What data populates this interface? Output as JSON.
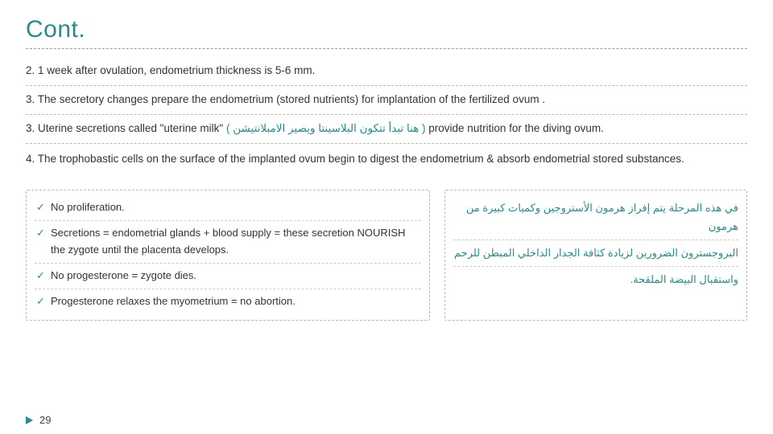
{
  "colors": {
    "accent": "#2b8a86",
    "text": "#333333",
    "dash": "#bbbbbb",
    "background": "#ffffff"
  },
  "title": "Cont.",
  "body": {
    "p1": "2. 1 week after ovulation, endometrium thickness is 5-6 mm.",
    "p2": "3. The secretory changes prepare the endometrium (stored nutrients) for implantation of the fertilized ovum .",
    "p3_pre": "3. Uterine secretions called \"uterine milk\" ",
    "p3_ar": "( هنا تبدأ تتكون البلاسينتا ويصير الامبلانتيشن )",
    "p3_post": " provide nutrition for the diving ovum.",
    "p4": "4. The trophobastic cells on the surface of the implanted ovum begin to digest the endometrium & absorb endometrial stored substances."
  },
  "left_list": {
    "i1": "No proliferation.",
    "i2": "Secretions = endometrial glands + blood supply = these secretion NOURISH the zygote until the placenta develops.",
    "i3": "No progesterone = zygote dies.",
    "i4": "Progesterone relaxes the myometrium = no abortion."
  },
  "right_list": {
    "i1": "في هذه المرحلة يتم إفراز هرمون الأستروجين وكميات كبيرة من هرمون",
    "i2": "البروجسترون الضرورين لزيادة كثافة الجدار الداخلي المبطن للرحم",
    "i3": "واستقبال البيضة الملقحة."
  },
  "page_number": "29"
}
